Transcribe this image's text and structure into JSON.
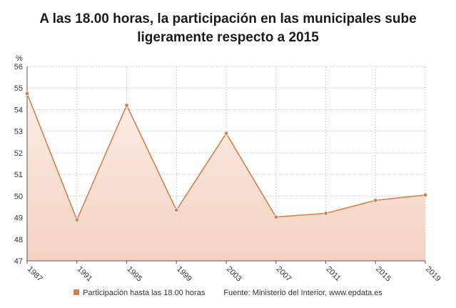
{
  "chart_data": {
    "type": "area",
    "title_lines": [
      "A las 18.00 horas, la participación en las municipales sube",
      "ligeramente respecto a 2015"
    ],
    "ylabel": "%",
    "xlabel": "",
    "categories": [
      "1987",
      "1991",
      "1995",
      "1999",
      "2003",
      "2007",
      "2011",
      "2015",
      "2019"
    ],
    "series": [
      {
        "name": "Participación hasta las 18.00 horas",
        "values": [
          54.75,
          48.9,
          54.2,
          49.35,
          52.9,
          49.03,
          49.2,
          49.8,
          50.05
        ]
      }
    ],
    "ylim": [
      47,
      56
    ],
    "yticks": [
      47,
      48,
      49,
      50,
      51,
      52,
      53,
      54,
      55,
      56
    ],
    "grid": true,
    "legend_position": "bottom",
    "source": "Fuente: Ministerio del Interior, www.epdata.es",
    "colors": {
      "line": "#d4804a",
      "fill_top": "#f3d2c0",
      "fill_bottom": "#fbeee7",
      "grid": "#cccccc",
      "axis": "#555555"
    }
  }
}
